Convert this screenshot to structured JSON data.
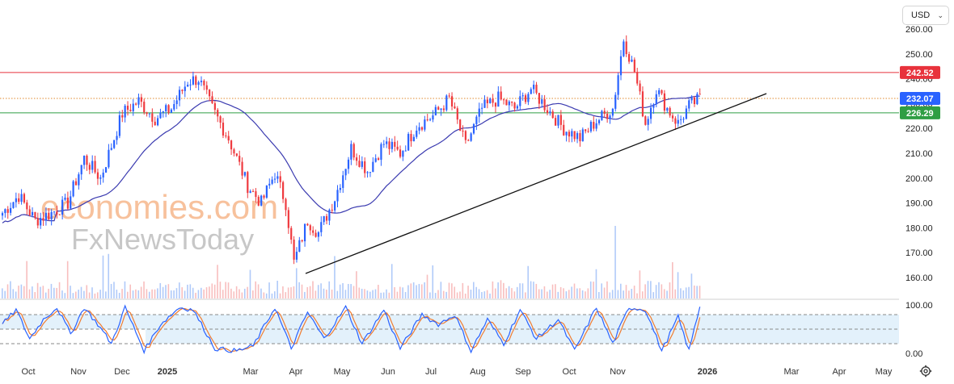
{
  "currency": {
    "label": "USD",
    "chevron": "chevron-down-icon"
  },
  "watermark": {
    "line1": "economies.com",
    "line2_fx": "Fx",
    "line2_rest": "NewsToday",
    "color": "#f5b183"
  },
  "colors": {
    "bull": "#2962ff",
    "bear": "#ef3a3f",
    "ma": "#3b3bb0",
    "resistance": "#e8323c",
    "support": "#2f9e44",
    "current": "#2962ff",
    "k_line": "#2962ff",
    "d_line": "#f07c30",
    "band": "#e3f1fb"
  },
  "settings_icon": "gear-icon",
  "chart_data": [
    {
      "type": "candlestick",
      "price_axis": {
        "ticks": [
          160,
          170,
          180,
          190,
          200,
          210,
          220,
          230,
          240,
          250,
          260
        ],
        "tick_labels": [
          "160.00",
          "170.00",
          "180.00",
          "190.00",
          "200.00",
          "210.00",
          "220.00",
          "230.00",
          "240.00",
          "250.00",
          "260.00"
        ]
      },
      "time_axis": {
        "labels": [
          "Oct",
          "Nov",
          "Dec",
          "2025",
          "Mar",
          "Apr",
          "May",
          "Jun",
          "Jul",
          "Aug",
          "Sep",
          "Oct",
          "Nov",
          "2026",
          "Mar",
          "Apr",
          "May"
        ],
        "bold": [
          "2025",
          "2026"
        ]
      },
      "price_lines": [
        {
          "name": "resistance",
          "value": 242.52,
          "label": "242.52",
          "style": "solid"
        },
        {
          "name": "current",
          "value": 232.07,
          "label": "232.07",
          "style": "dotted"
        },
        {
          "name": "support",
          "value": 226.29,
          "label": "226.29",
          "style": "solid"
        }
      ],
      "trendline": {
        "from": {
          "date": "2025-04-07",
          "price": 163
        },
        "to": {
          "date": "2026-01-15",
          "price": 233
        }
      },
      "price_path": [
        {
          "t": 0,
          "p": 186
        },
        {
          "t": 6,
          "p": 193
        },
        {
          "t": 12,
          "p": 183
        },
        {
          "t": 18,
          "p": 186
        },
        {
          "t": 24,
          "p": 190
        },
        {
          "t": 30,
          "p": 208
        },
        {
          "t": 36,
          "p": 200
        },
        {
          "t": 44,
          "p": 226
        },
        {
          "t": 50,
          "p": 231
        },
        {
          "t": 56,
          "p": 224
        },
        {
          "t": 62,
          "p": 228
        },
        {
          "t": 68,
          "p": 239
        },
        {
          "t": 72,
          "p": 240
        },
        {
          "t": 77,
          "p": 228
        },
        {
          "t": 83,
          "p": 216
        },
        {
          "t": 90,
          "p": 197
        },
        {
          "t": 95,
          "p": 190
        },
        {
          "t": 100,
          "p": 202
        },
        {
          "t": 104,
          "p": 190
        },
        {
          "t": 107,
          "p": 166
        },
        {
          "t": 112,
          "p": 183
        },
        {
          "t": 116,
          "p": 178
        },
        {
          "t": 122,
          "p": 192
        },
        {
          "t": 128,
          "p": 212
        },
        {
          "t": 134,
          "p": 203
        },
        {
          "t": 140,
          "p": 214
        },
        {
          "t": 146,
          "p": 210
        },
        {
          "t": 152,
          "p": 221
        },
        {
          "t": 158,
          "p": 225
        },
        {
          "t": 164,
          "p": 232
        },
        {
          "t": 170,
          "p": 213
        },
        {
          "t": 176,
          "p": 228
        },
        {
          "t": 182,
          "p": 232
        },
        {
          "t": 188,
          "p": 228
        },
        {
          "t": 194,
          "p": 236
        },
        {
          "t": 200,
          "p": 228
        },
        {
          "t": 206,
          "p": 220
        },
        {
          "t": 212,
          "p": 216
        },
        {
          "t": 218,
          "p": 223
        },
        {
          "t": 224,
          "p": 228
        },
        {
          "t": 228,
          "p": 256
        },
        {
          "t": 232,
          "p": 243
        },
        {
          "t": 236,
          "p": 222
        },
        {
          "t": 240,
          "p": 236
        },
        {
          "t": 244,
          "p": 228
        },
        {
          "t": 248,
          "p": 222
        },
        {
          "t": 252,
          "p": 229
        },
        {
          "t": 256,
          "p": 232
        }
      ]
    },
    {
      "type": "oscillator",
      "axis": {
        "ticks": [
          0,
          100
        ],
        "tick_labels": [
          "0.00",
          "100.00"
        ]
      },
      "levels": [
        20,
        50,
        80
      ],
      "k_path": [
        {
          "t": 0,
          "v": 60
        },
        {
          "t": 5,
          "v": 90
        },
        {
          "t": 10,
          "v": 30
        },
        {
          "t": 15,
          "v": 70
        },
        {
          "t": 20,
          "v": 95
        },
        {
          "t": 25,
          "v": 40
        },
        {
          "t": 30,
          "v": 95
        },
        {
          "t": 35,
          "v": 60
        },
        {
          "t": 40,
          "v": 20
        },
        {
          "t": 45,
          "v": 95
        },
        {
          "t": 52,
          "v": 5
        },
        {
          "t": 58,
          "v": 60
        },
        {
          "t": 65,
          "v": 95
        },
        {
          "t": 70,
          "v": 90
        },
        {
          "t": 78,
          "v": 10
        },
        {
          "t": 86,
          "v": 5
        },
        {
          "t": 92,
          "v": 15
        },
        {
          "t": 100,
          "v": 95
        },
        {
          "t": 106,
          "v": 10
        },
        {
          "t": 112,
          "v": 85
        },
        {
          "t": 118,
          "v": 30
        },
        {
          "t": 126,
          "v": 95
        },
        {
          "t": 132,
          "v": 20
        },
        {
          "t": 140,
          "v": 90
        },
        {
          "t": 146,
          "v": 10
        },
        {
          "t": 154,
          "v": 80
        },
        {
          "t": 160,
          "v": 60
        },
        {
          "t": 166,
          "v": 80
        },
        {
          "t": 172,
          "v": 5
        },
        {
          "t": 178,
          "v": 70
        },
        {
          "t": 184,
          "v": 20
        },
        {
          "t": 190,
          "v": 90
        },
        {
          "t": 196,
          "v": 30
        },
        {
          "t": 204,
          "v": 70
        },
        {
          "t": 210,
          "v": 5
        },
        {
          "t": 218,
          "v": 95
        },
        {
          "t": 224,
          "v": 20
        },
        {
          "t": 230,
          "v": 95
        },
        {
          "t": 236,
          "v": 90
        },
        {
          "t": 242,
          "v": 5
        },
        {
          "t": 248,
          "v": 75
        },
        {
          "t": 252,
          "v": 5
        },
        {
          "t": 256,
          "v": 98
        }
      ]
    }
  ]
}
